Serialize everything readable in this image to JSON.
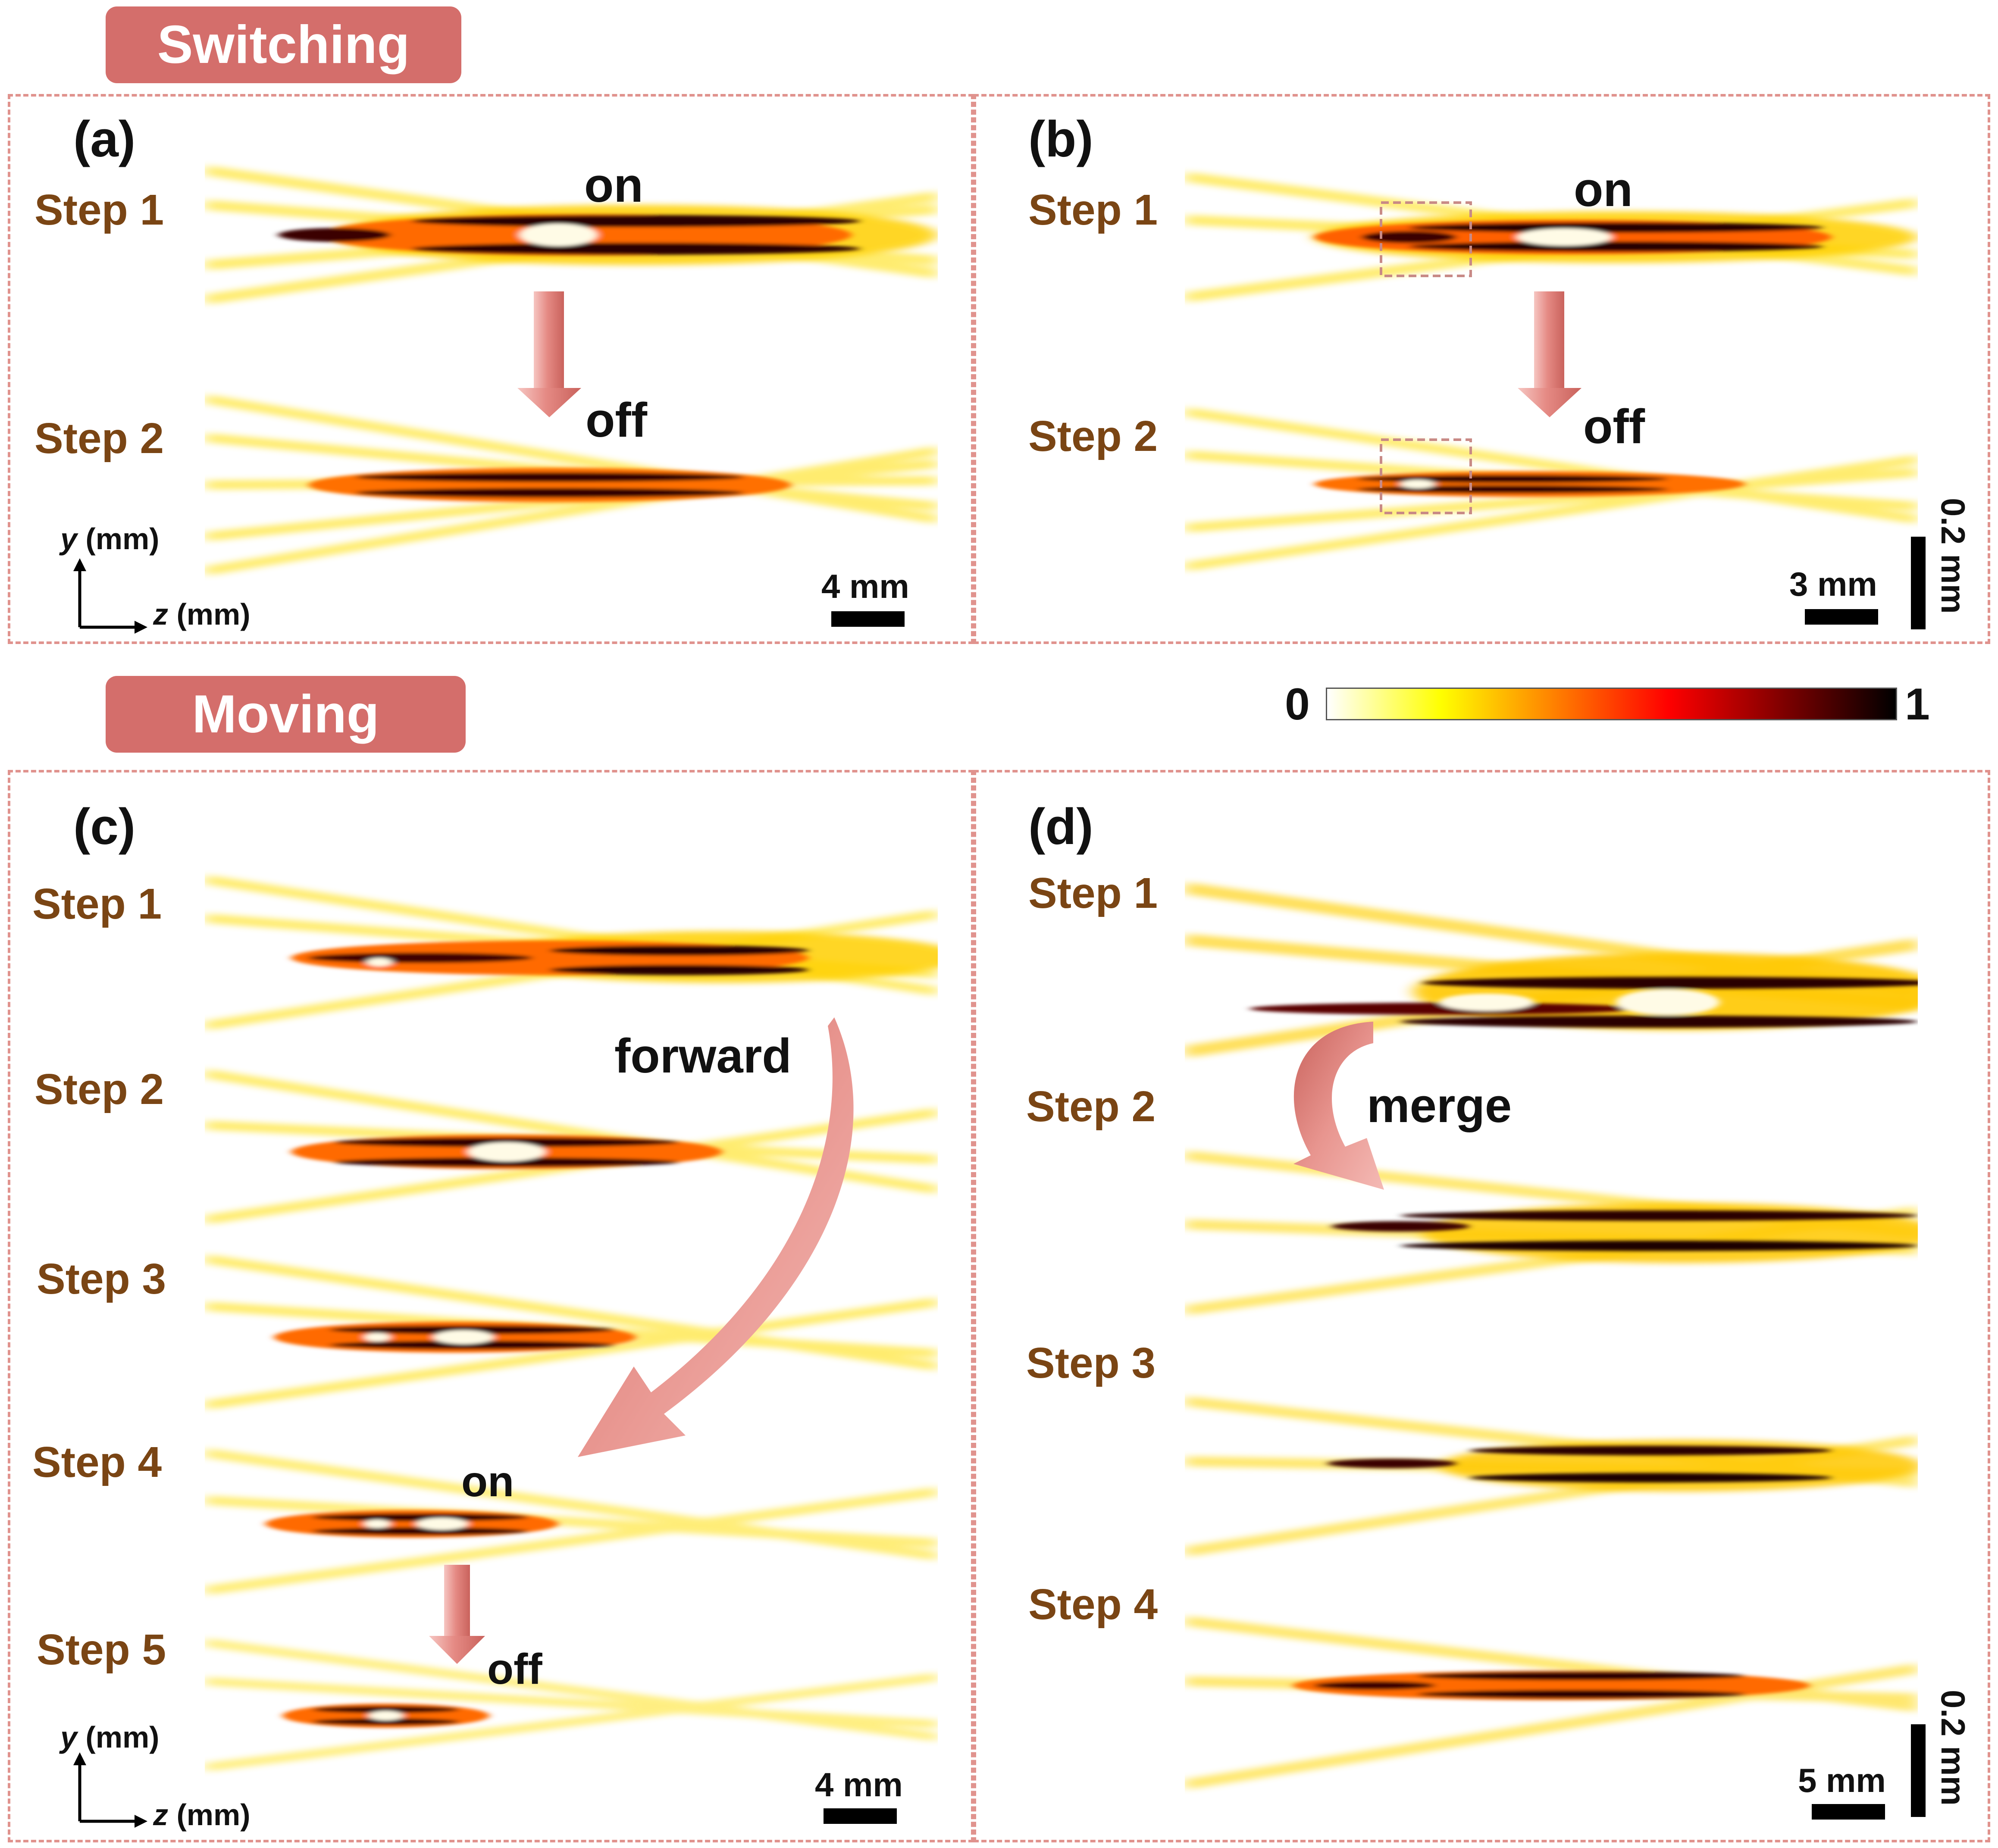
{
  "sections": {
    "top": "Switching",
    "bottom": "Moving"
  },
  "panels": {
    "a": {
      "tag": "(a)",
      "steps": [
        "Step 1",
        "Step 2"
      ],
      "notes": {
        "on": "on",
        "off": "off"
      },
      "scalebar": "4 mm",
      "axes": {
        "y": "y",
        "z": "z",
        "unit": "(mm)"
      }
    },
    "b": {
      "tag": "(b)",
      "steps": [
        "Step 1",
        "Step 2"
      ],
      "notes": {
        "on": "on",
        "off": "off"
      },
      "scalebar": "3 mm",
      "vscalebar": "0.2 mm"
    },
    "c": {
      "tag": "(c)",
      "steps": [
        "Step 1",
        "Step 2",
        "Step 3",
        "Step 4",
        "Step 5"
      ],
      "notes": {
        "forward": "forward",
        "on": "on",
        "off": "off"
      },
      "scalebar": "4 mm",
      "axes": {
        "y": "y",
        "z": "z",
        "unit": "(mm)"
      }
    },
    "d": {
      "tag": "(d)",
      "steps": [
        "Step 1",
        "Step 2",
        "Step 3",
        "Step 4"
      ],
      "notes": {
        "merge": "merge"
      },
      "scalebar": "5 mm",
      "vscalebar": "0.2 mm"
    }
  },
  "colorbar": {
    "min": "0",
    "max": "1",
    "colors": [
      "#ffffff",
      "#ffff00",
      "#ff8000",
      "#ff0000",
      "#800000",
      "#000000"
    ]
  },
  "colors": {
    "label_fill": "#d46e6b",
    "dashed_border": "#e0938e",
    "arrow": "#e07f7a",
    "step_text": "#7a4514"
  }
}
